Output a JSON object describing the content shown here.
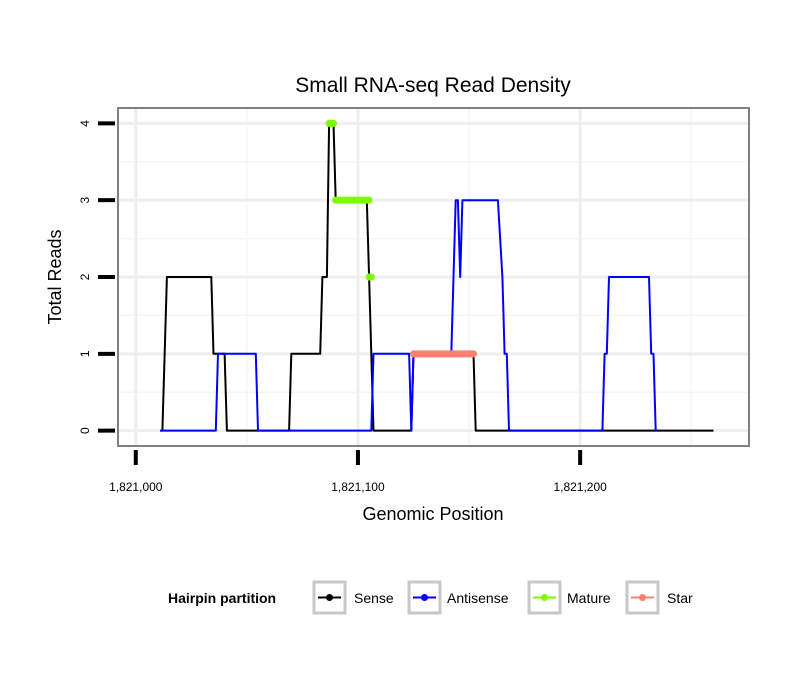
{
  "chart_data": {
    "type": "line",
    "title": "Small RNA-seq Read Density",
    "xlabel": "Genomic Position",
    "ylabel": "Total Reads",
    "xlim": [
      1820992,
      1821276
    ],
    "ylim": [
      -0.2,
      4.2
    ],
    "x_ticks": [
      1821000,
      1821100,
      1821200
    ],
    "x_tick_labels": [
      "1,821,000",
      "1,821,100",
      "1,821,200"
    ],
    "y_ticks": [
      0,
      1,
      2,
      3,
      4
    ],
    "y_tick_labels": [
      "0",
      "1",
      "2",
      "3",
      "4"
    ],
    "grid": true,
    "legend": {
      "title": "Hairpin partition",
      "position": "bottom",
      "entries": [
        {
          "label": "Sense",
          "color": "#000000"
        },
        {
          "label": "Antisense",
          "color": "#0000ff"
        },
        {
          "label": "Mature",
          "color": "#7cfc00"
        },
        {
          "label": "Star",
          "color": "#fa8072"
        }
      ]
    },
    "series": [
      {
        "name": "Sense",
        "color": "#000000",
        "width": 2,
        "style": "line",
        "points": [
          [
            1821011,
            0
          ],
          [
            1821012,
            0
          ],
          [
            1821014,
            2
          ],
          [
            1821034,
            2
          ],
          [
            1821035,
            1
          ],
          [
            1821040,
            1
          ],
          [
            1821041,
            0
          ],
          [
            1821069,
            0
          ],
          [
            1821070,
            1
          ],
          [
            1821083,
            1
          ],
          [
            1821084,
            2
          ],
          [
            1821086,
            2
          ],
          [
            1821087,
            4
          ],
          [
            1821089,
            4
          ],
          [
            1821090,
            3
          ],
          [
            1821104,
            3
          ],
          [
            1821105,
            2
          ],
          [
            1821106,
            1
          ],
          [
            1821107,
            0
          ],
          [
            1821124,
            0
          ],
          [
            1821125,
            1
          ],
          [
            1821152,
            1
          ],
          [
            1821153,
            0
          ],
          [
            1821260,
            0
          ]
        ]
      },
      {
        "name": "Antisense",
        "color": "#0000ff",
        "width": 2,
        "style": "line",
        "points": [
          [
            1821011,
            0
          ],
          [
            1821036,
            0
          ],
          [
            1821037,
            1
          ],
          [
            1821054,
            1
          ],
          [
            1821055,
            0
          ],
          [
            1821069,
            0
          ],
          [
            1821106,
            0
          ],
          [
            1821107,
            1
          ],
          [
            1821123,
            1
          ],
          [
            1821124,
            0
          ],
          [
            1821125,
            1
          ],
          [
            1821142,
            1
          ],
          [
            1821144,
            3
          ],
          [
            1821145,
            3
          ],
          [
            1821146,
            2
          ],
          [
            1821147,
            3
          ],
          [
            1821163,
            3
          ],
          [
            1821165,
            2
          ],
          [
            1821166,
            1
          ],
          [
            1821167,
            1
          ],
          [
            1821168,
            0
          ],
          [
            1821210,
            0
          ],
          [
            1821211,
            1
          ],
          [
            1821212,
            1
          ],
          [
            1821213,
            2
          ],
          [
            1821231,
            2
          ],
          [
            1821232,
            1
          ],
          [
            1821233,
            1
          ],
          [
            1821234,
            0
          ]
        ]
      },
      {
        "name": "Mature",
        "color": "#7cfc00",
        "width": 7,
        "style": "segments",
        "segments": [
          [
            [
              1821087,
              4
            ],
            [
              1821089,
              4
            ]
          ],
          [
            [
              1821090,
              3
            ],
            [
              1821105,
              3
            ]
          ],
          [
            [
              1821105,
              2
            ],
            [
              1821106,
              2
            ]
          ]
        ]
      },
      {
        "name": "Star",
        "color": "#fa8072",
        "width": 7,
        "style": "segments",
        "segments": [
          [
            [
              1821125,
              1
            ],
            [
              1821152,
              1
            ]
          ]
        ]
      }
    ]
  }
}
